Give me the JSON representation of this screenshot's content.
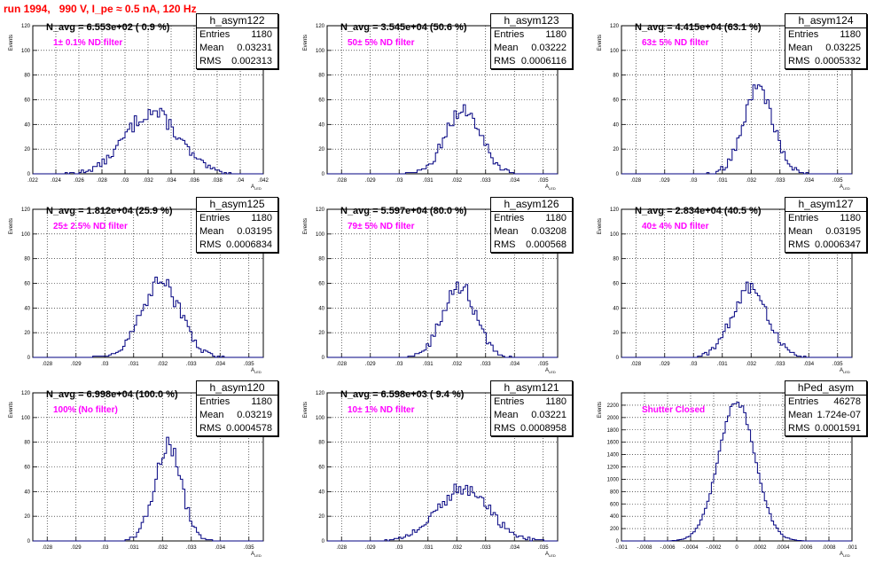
{
  "page_title": "run 1994,   990 V, I_pe ≈ 0.5 nA, 120 Hz",
  "y_axis_label": "Events",
  "x_axis_label": "A",
  "x_axis_subscript": "LED",
  "colors": {
    "histogram_line": "#000080",
    "annotation": "#ff00ff",
    "title": "#ff0000"
  },
  "stats_labels": {
    "entries": "Entries",
    "mean": "Mean",
    "rms": "RMS"
  },
  "chart_data": [
    {
      "type": "histogram",
      "name": "h_asym122",
      "navg_label": "N_avg = 6.553e+02 ( 0.9 %)",
      "filter_label": "1± 0.1% ND filter",
      "stats": {
        "entries": "1180",
        "mean": "0.03231",
        "rms": "0.002313"
      },
      "xlim": [
        0.022,
        0.042
      ],
      "ylim": [
        0,
        120
      ],
      "xticks": [
        0.022,
        0.024,
        0.026,
        0.028,
        0.03,
        0.032,
        0.034,
        0.036,
        0.038,
        0.04,
        0.042
      ],
      "yticks": [
        0,
        20,
        40,
        60,
        80,
        100,
        120
      ],
      "hist": {
        "mean": 0.03231,
        "sigma": 0.00231,
        "peak": 50,
        "entries": 1180
      }
    },
    {
      "type": "histogram",
      "name": "h_asym123",
      "navg_label": "N_avg = 3.545e+04 (50.6 %)",
      "filter_label": "50± 5% ND filter",
      "stats": {
        "entries": "1180",
        "mean": "0.03222",
        "rms": "0.0006116"
      },
      "xlim": [
        0.0275,
        0.0355
      ],
      "ylim": [
        0,
        120
      ],
      "xticks": [
        0.028,
        0.029,
        0.03,
        0.031,
        0.032,
        0.033,
        0.034,
        0.035
      ],
      "yticks": [
        0,
        20,
        40,
        60,
        80,
        100,
        120
      ],
      "hist": {
        "mean": 0.03222,
        "sigma": 0.00061,
        "peak": 52,
        "entries": 1180
      }
    },
    {
      "type": "histogram",
      "name": "h_asym124",
      "navg_label": "N_avg = 4.415e+04 (63.1 %)",
      "filter_label": "63± 5% ND filter",
      "stats": {
        "entries": "1180",
        "mean": "0.03225",
        "rms": "0.0005332"
      },
      "xlim": [
        0.0275,
        0.0355
      ],
      "ylim": [
        0,
        120
      ],
      "xticks": [
        0.028,
        0.029,
        0.03,
        0.031,
        0.032,
        0.033,
        0.034,
        0.035
      ],
      "yticks": [
        0,
        20,
        40,
        60,
        80,
        100,
        120
      ],
      "hist": {
        "mean": 0.03225,
        "sigma": 0.00053,
        "peak": 68,
        "entries": 1180
      }
    },
    {
      "type": "histogram",
      "name": "h_asym125",
      "navg_label": "N_avg = 1.812e+04 (25.9 %)",
      "filter_label": "25± 2.5% ND filter",
      "stats": {
        "entries": "1180",
        "mean": "0.03195",
        "rms": "0.0006834"
      },
      "xlim": [
        0.0275,
        0.0355
      ],
      "ylim": [
        0,
        120
      ],
      "xticks": [
        0.028,
        0.029,
        0.03,
        0.031,
        0.032,
        0.033,
        0.034,
        0.035
      ],
      "yticks": [
        0,
        20,
        40,
        60,
        80,
        100,
        120
      ],
      "hist": {
        "mean": 0.03195,
        "sigma": 0.00068,
        "peak": 60,
        "entries": 1180
      }
    },
    {
      "type": "histogram",
      "name": "h_asym126",
      "navg_label": "N_avg = 5.597e+04 (80.0 %)",
      "filter_label": "79± 5% ND filter",
      "stats": {
        "entries": "1180",
        "mean": "0.03208",
        "rms": "0.000568"
      },
      "xlim": [
        0.0275,
        0.0355
      ],
      "ylim": [
        0,
        120
      ],
      "xticks": [
        0.028,
        0.029,
        0.03,
        0.031,
        0.032,
        0.033,
        0.034,
        0.035
      ],
      "yticks": [
        0,
        20,
        40,
        60,
        80,
        100,
        120
      ],
      "hist": {
        "mean": 0.03208,
        "sigma": 0.00057,
        "peak": 58,
        "entries": 1180
      }
    },
    {
      "type": "histogram",
      "name": "h_asym127",
      "navg_label": "N_avg = 2.834e+04 (40.5 %)",
      "filter_label": "40± 4% ND filter",
      "stats": {
        "entries": "1180",
        "mean": "0.03195",
        "rms": "0.0006347"
      },
      "xlim": [
        0.0275,
        0.0355
      ],
      "ylim": [
        0,
        120
      ],
      "xticks": [
        0.028,
        0.029,
        0.03,
        0.031,
        0.032,
        0.033,
        0.034,
        0.035
      ],
      "yticks": [
        0,
        20,
        40,
        60,
        80,
        100,
        120
      ],
      "hist": {
        "mean": 0.03195,
        "sigma": 0.00063,
        "peak": 55,
        "entries": 1180
      }
    },
    {
      "type": "histogram",
      "name": "h_asym120",
      "navg_label": "N_avg = 6.998e+04 (100.0 %)",
      "filter_label": "100% (No filter)",
      "stats": {
        "entries": "1180",
        "mean": "0.03219",
        "rms": "0.0004578"
      },
      "xlim": [
        0.0275,
        0.0355
      ],
      "ylim": [
        0,
        120
      ],
      "xticks": [
        0.028,
        0.029,
        0.03,
        0.031,
        0.032,
        0.033,
        0.034,
        0.035
      ],
      "yticks": [
        0,
        20,
        40,
        60,
        80,
        100,
        120
      ],
      "hist": {
        "mean": 0.03219,
        "sigma": 0.00046,
        "peak": 78,
        "entries": 1180
      }
    },
    {
      "type": "histogram",
      "name": "h_asym121",
      "navg_label": "N_avg = 6.598e+03 ( 9.4 %)",
      "filter_label": "10± 1% ND filter",
      "stats": {
        "entries": "1180",
        "mean": "0.03221",
        "rms": "0.0008958"
      },
      "xlim": [
        0.0275,
        0.0355
      ],
      "ylim": [
        0,
        120
      ],
      "xticks": [
        0.028,
        0.029,
        0.03,
        0.031,
        0.032,
        0.033,
        0.034,
        0.035
      ],
      "yticks": [
        0,
        20,
        40,
        60,
        80,
        100,
        120
      ],
      "hist": {
        "mean": 0.03221,
        "sigma": 0.0009,
        "peak": 42,
        "entries": 1180
      }
    },
    {
      "type": "histogram",
      "name": "hPed_asym",
      "navg_label": "",
      "filter_label": "Shutter Closed",
      "stats": {
        "entries": "46278",
        "mean": "1.724e-07",
        "rms": "0.0001591"
      },
      "xlim": [
        -0.001,
        0.001
      ],
      "ylim": [
        0,
        2400
      ],
      "xticks": [
        -0.001,
        -0.0008,
        -0.0006,
        -0.0004,
        -0.0002,
        0,
        0.0002,
        0.0004,
        0.0006,
        0.0008,
        0.001
      ],
      "yticks": [
        0,
        200,
        400,
        600,
        800,
        1000,
        1200,
        1400,
        1600,
        1800,
        2000,
        2200
      ],
      "hist": {
        "mean": 0.0,
        "sigma": 0.000159,
        "peak": 2250,
        "entries": 46278
      }
    }
  ]
}
